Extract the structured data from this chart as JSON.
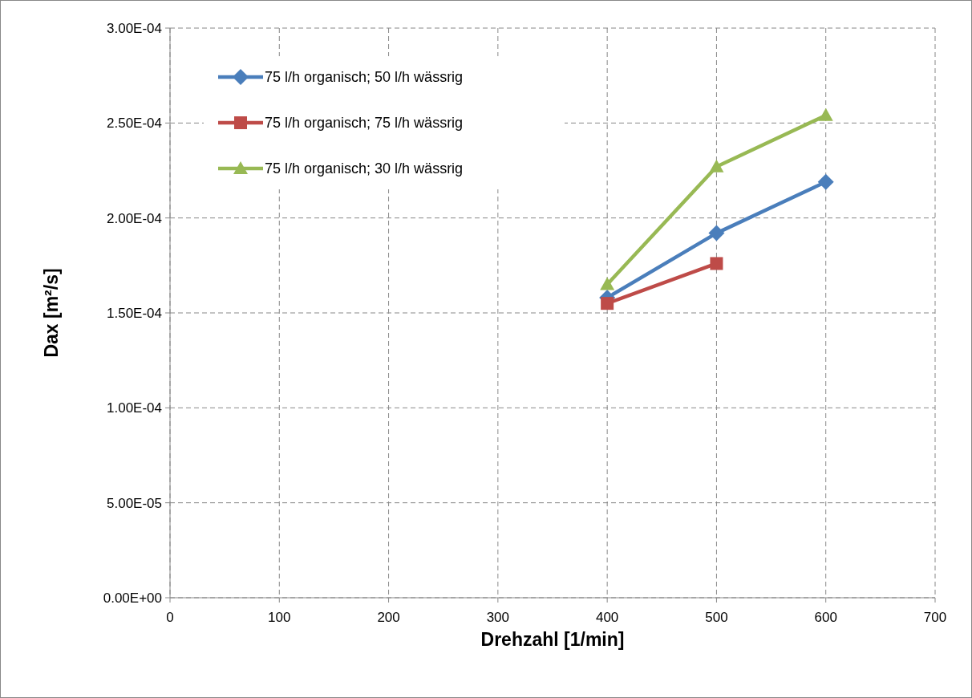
{
  "chart_data": {
    "type": "line",
    "xlabel": "Drehzahl [1/min]",
    "ylabel": "Dax [m²/s]",
    "xlim": [
      0,
      700
    ],
    "xticks": [
      0,
      100,
      200,
      300,
      400,
      500,
      600,
      700
    ],
    "ylim": [
      0,
      0.0003
    ],
    "yticks": [
      {
        "value": 0,
        "label": "0.00E+00"
      },
      {
        "value": 5e-05,
        "label": "5.00E-05"
      },
      {
        "value": 0.0001,
        "label": "1.00E-04"
      },
      {
        "value": 0.00015,
        "label": "1.50E-04"
      },
      {
        "value": 0.0002,
        "label": "2.00E-04"
      },
      {
        "value": 0.00025,
        "label": "2.50E-04"
      },
      {
        "value": 0.0003,
        "label": "3.00E-04"
      }
    ],
    "grid": true,
    "legend": "top left",
    "line_style": "solid",
    "series": [
      {
        "name": "75 l/h organisch; 50 l/h wässrig",
        "color": "#4a7ebb",
        "marker": "diamond",
        "x": [
          400,
          500,
          600
        ],
        "values": [
          0.000158,
          0.000192,
          0.000219
        ]
      },
      {
        "name": "75 l/h organisch; 75 l/h wässrig",
        "color": "#be4b48",
        "marker": "square",
        "x": [
          400,
          500
        ],
        "values": [
          0.000155,
          0.000176
        ]
      },
      {
        "name": "75 l/h organisch; 30 l/h wässrig",
        "color": "#98b954",
        "marker": "triangle",
        "x": [
          400,
          500,
          600
        ],
        "values": [
          0.000165,
          0.000227,
          0.000254
        ]
      }
    ]
  }
}
